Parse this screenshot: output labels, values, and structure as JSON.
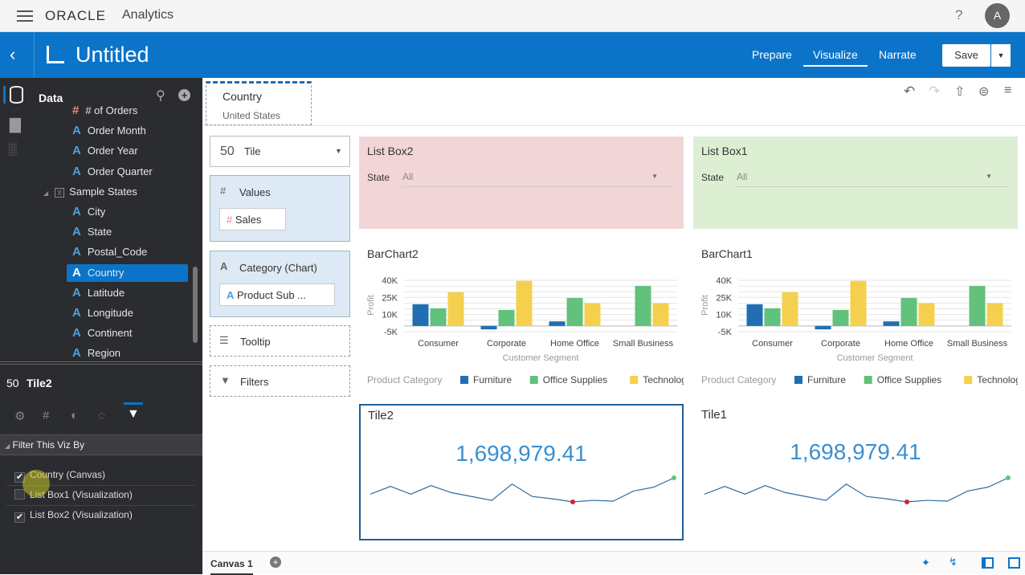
{
  "topbar": {
    "brand": "ORACLE",
    "product": "Analytics",
    "help": "?",
    "avatar": "A"
  },
  "header": {
    "title": "Untitled",
    "nav": [
      "Prepare",
      "Visualize",
      "Narrate"
    ],
    "active": "Visualize",
    "save": "Save"
  },
  "sidebar": {
    "section": "Data",
    "items": [
      {
        "label": "# of Orders",
        "type": "measure"
      },
      {
        "label": "Order Month",
        "type": "attr"
      },
      {
        "label": "Order Year",
        "type": "attr"
      },
      {
        "label": "Order Quarter",
        "type": "attr"
      },
      {
        "label": "Sample States",
        "type": "source"
      },
      {
        "label": "City",
        "type": "attr"
      },
      {
        "label": "State",
        "type": "attr"
      },
      {
        "label": "Postal_Code",
        "type": "attr"
      },
      {
        "label": "Country",
        "type": "attr",
        "selected": true
      },
      {
        "label": "Latitude",
        "type": "attr"
      },
      {
        "label": "Longitude",
        "type": "attr"
      },
      {
        "label": "Continent",
        "type": "attr"
      },
      {
        "label": "Region",
        "type": "attr"
      }
    ]
  },
  "properties": {
    "viz_icon": "50",
    "viz_name": "Tile2",
    "section": "Filter This Viz By",
    "filters": [
      {
        "label": "Country (Canvas)",
        "checked": true
      },
      {
        "label": "List Box1 (Visualization)",
        "checked": false
      },
      {
        "label": "List Box2 (Visualization)",
        "checked": true
      }
    ]
  },
  "filterbar": {
    "label": "Country",
    "value": "United States"
  },
  "grammar": {
    "viz_type": "Tile",
    "values": "Values",
    "values_item": "Sales",
    "category": "Category (Chart)",
    "category_item": "Product Sub ...",
    "tooltip": "Tooltip",
    "filters": "Filters"
  },
  "listboxes": [
    {
      "title": "List Box2",
      "label": "State",
      "value": "All",
      "color": "#f2d5d7"
    },
    {
      "title": "List Box1",
      "label": "State",
      "value": "All",
      "color": "#dcefd3"
    }
  ],
  "chart_data": [
    {
      "type": "bar",
      "title": "BarChart2",
      "xlabel": "Customer Segment",
      "ylabel": "Profit",
      "ylim": [
        -5000,
        40000
      ],
      "yticks": [
        "40K",
        "25K",
        "10K",
        "-5K"
      ],
      "yticks_values": [
        40000,
        25000,
        10000,
        -5000
      ],
      "categories": [
        "Consumer",
        "Corporate",
        "Home Office",
        "Small Business"
      ],
      "legend_title": "Product Category",
      "legend_position": "bottom",
      "series": [
        {
          "name": "Furniture",
          "color": "#1f6fb2",
          "values": [
            19000,
            -3000,
            4000,
            0
          ]
        },
        {
          "name": "Office Supplies",
          "color": "#62c17a",
          "values": [
            15500,
            14000,
            24500,
            35000
          ]
        },
        {
          "name": "Technology",
          "color": "#f5d04f",
          "values": [
            29500,
            39500,
            20000,
            20000
          ]
        }
      ]
    },
    {
      "type": "bar",
      "title": "BarChart1",
      "xlabel": "Customer Segment",
      "ylabel": "Profit",
      "ylim": [
        -5000,
        40000
      ],
      "yticks": [
        "40K",
        "25K",
        "10K",
        "-5K"
      ],
      "yticks_values": [
        40000,
        25000,
        10000,
        -5000
      ],
      "categories": [
        "Consumer",
        "Corporate",
        "Home Office",
        "Small Business"
      ],
      "legend_title": "Product Category",
      "legend_position": "bottom",
      "series": [
        {
          "name": "Furniture",
          "color": "#1f6fb2",
          "values": [
            19000,
            -3000,
            4000,
            0
          ]
        },
        {
          "name": "Office Supplies",
          "color": "#62c17a",
          "values": [
            15500,
            14000,
            24500,
            35000
          ]
        },
        {
          "name": "Technology",
          "color": "#f5d04f",
          "values": [
            29500,
            39500,
            20000,
            20000
          ]
        }
      ]
    }
  ],
  "tiles": [
    {
      "title": "Tile2",
      "value": "1,698,979.41",
      "spark": [
        10,
        20,
        10,
        21,
        12,
        7,
        2,
        23,
        7,
        4,
        0,
        2,
        1,
        14,
        19,
        31
      ]
    },
    {
      "title": "Tile1",
      "value": "1,698,979.41",
      "spark": [
        10,
        20,
        10,
        21,
        12,
        7,
        2,
        23,
        7,
        4,
        0,
        2,
        1,
        14,
        19,
        31
      ]
    }
  ],
  "canvas_tabs": [
    "Canvas 1"
  ]
}
